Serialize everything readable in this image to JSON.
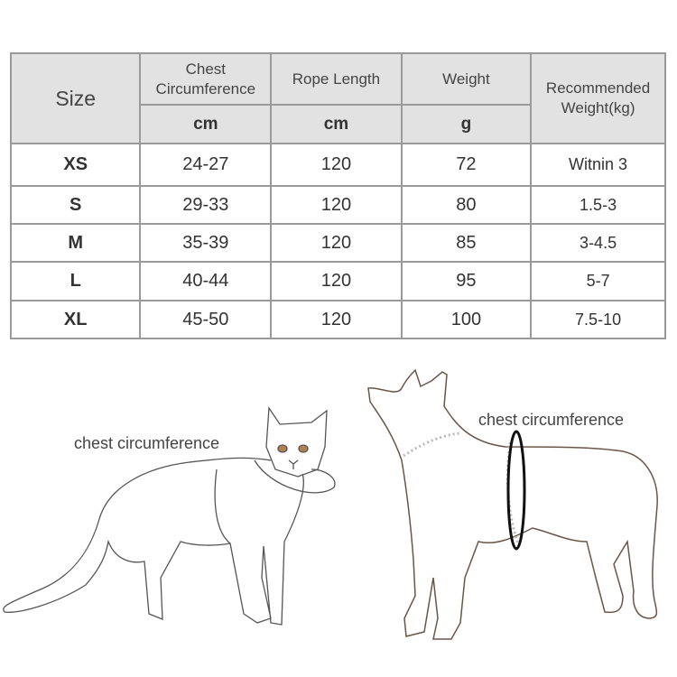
{
  "table": {
    "headers": {
      "size": "Size",
      "chest": "Chest Circumference",
      "rope": "Rope Length",
      "weight": "Weight",
      "recommended": "Recommended Weight(kg)"
    },
    "units": {
      "chest": "cm",
      "rope": "cm",
      "weight": "g"
    },
    "rows": [
      {
        "size": "XS",
        "chest": "24-27",
        "rope": "120",
        "weight": "72",
        "recommended": "Witnin 3"
      },
      {
        "size": "S",
        "chest": "29-33",
        "rope": "120",
        "weight": "80",
        "recommended": "1.5-3"
      },
      {
        "size": "M",
        "chest": "35-39",
        "rope": "120",
        "weight": "85",
        "recommended": "3-4.5"
      },
      {
        "size": "L",
        "chest": "40-44",
        "rope": "120",
        "weight": "95",
        "recommended": "5-7"
      },
      {
        "size": "XL",
        "chest": "45-50",
        "rope": "120",
        "weight": "100",
        "recommended": "7.5-10"
      }
    ]
  },
  "illustrations": {
    "cat_label": "chest circumference",
    "dog_label": "chest circumference",
    "colors": {
      "cat_outline": "#555555",
      "dog_outline": "#6b5548",
      "harness": "#111111",
      "dots": "#bbbbbb"
    }
  }
}
